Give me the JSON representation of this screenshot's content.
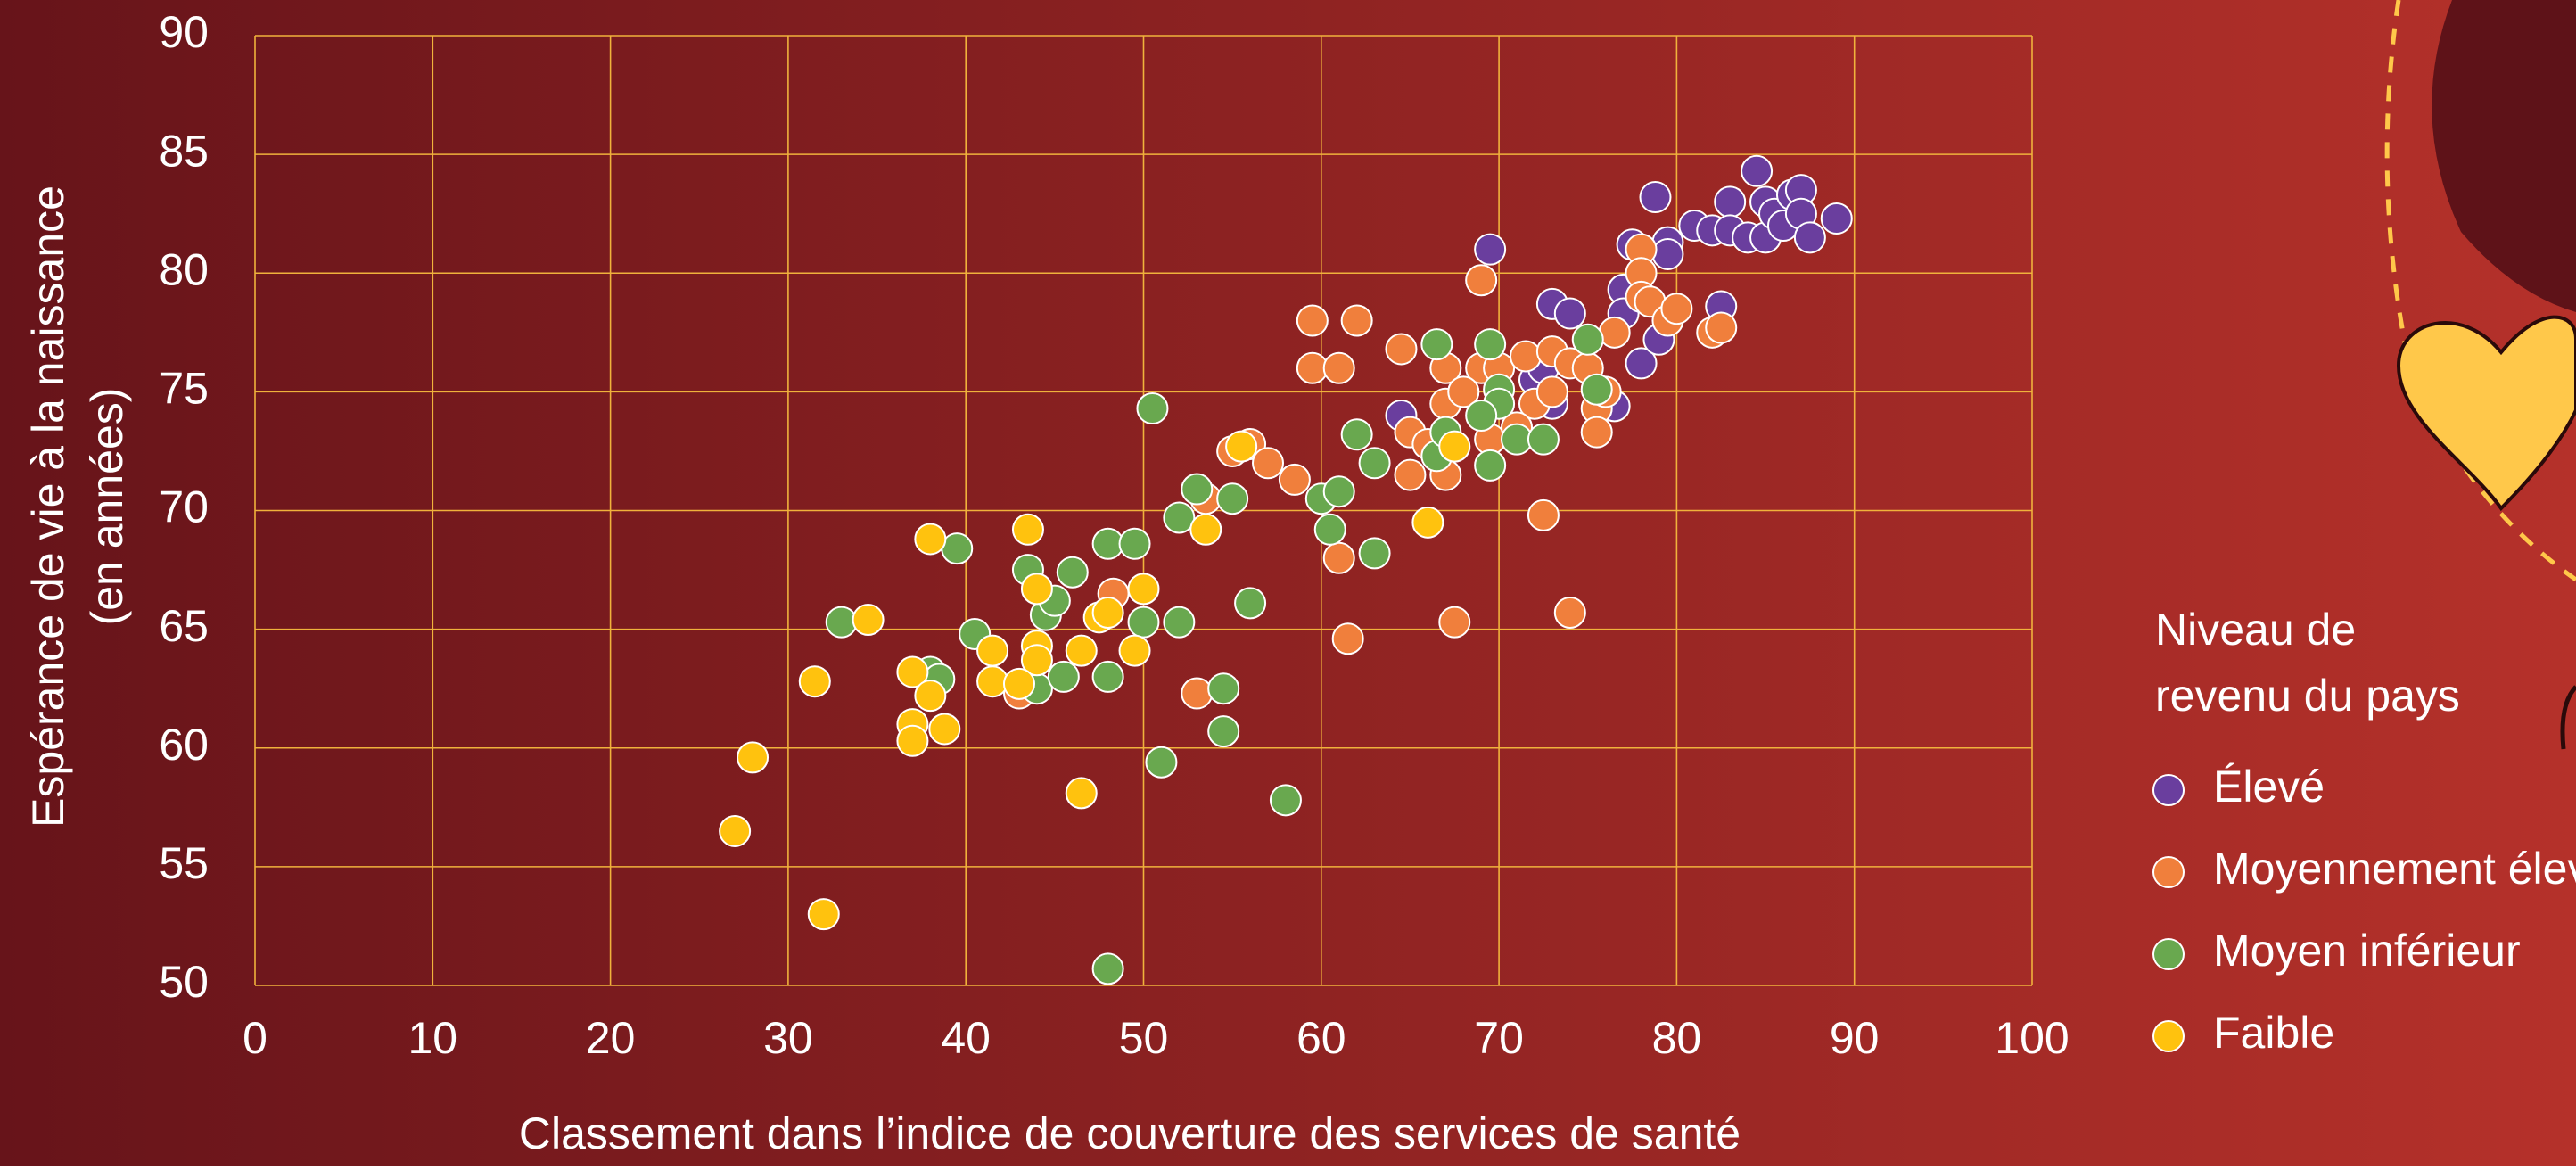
{
  "chart_data": {
    "type": "scatter",
    "x_label": "Classement dans l’indice de couverture des services de santé",
    "y_label": [
      "Espérance de vie à la naissance",
      "(en années)"
    ],
    "legend_title": [
      "Niveau de",
      "revenu du pays"
    ],
    "xlim": [
      0,
      100
    ],
    "ylim": [
      50,
      90
    ],
    "xticks": [
      0,
      10,
      20,
      30,
      40,
      50,
      60,
      70,
      80,
      90,
      100
    ],
    "yticks": [
      50,
      55,
      60,
      65,
      70,
      75,
      80,
      85,
      90
    ],
    "grid": true,
    "legend": "right",
    "series": [
      {
        "name": "Élevé",
        "color": "#6a3e9e",
        "x": [
          69.5,
          73,
          74,
          77.5,
          78.8,
          79.5,
          79.5,
          77,
          77,
          78,
          76.5,
          79,
          81,
          82,
          83,
          83,
          84,
          84.5,
          85,
          85,
          85.5,
          86,
          86.5,
          87,
          87,
          87.5,
          89,
          82.5,
          64.5,
          72,
          72.5,
          73,
          68
        ],
        "values": [
          81,
          78.7,
          78.3,
          81.2,
          83.2,
          81.3,
          80.8,
          79.3,
          78.3,
          76.2,
          74.4,
          77.2,
          82,
          81.8,
          83,
          81.8,
          81.5,
          84.3,
          83,
          81.5,
          82.5,
          82,
          83.3,
          83.5,
          82.5,
          81.5,
          82.3,
          78.6,
          74,
          75.5,
          76,
          74.5,
          75
        ]
      },
      {
        "name": "Moyennement élevé",
        "color": "#f07f3c",
        "x": [
          59.5,
          62,
          59.5,
          61,
          64.5,
          67,
          69,
          69,
          70,
          71.5,
          72,
          73,
          73,
          74,
          75,
          75.5,
          75.5,
          76,
          76.5,
          78,
          78,
          78,
          78.5,
          79.5,
          80,
          82,
          82.5,
          56,
          55,
          57,
          58.5,
          65,
          65,
          66,
          67,
          67,
          68,
          69.5,
          72.5,
          61,
          61.5,
          67.5,
          74,
          53,
          48.3,
          43,
          71,
          53.5
        ],
        "values": [
          78,
          78,
          76,
          76,
          76.8,
          76,
          79.7,
          76,
          76,
          76.5,
          74.5,
          76.7,
          75,
          76.2,
          76,
          74.3,
          73.3,
          75,
          77.5,
          81,
          80,
          79,
          78.8,
          78,
          78.5,
          77.5,
          77.7,
          72.8,
          72.5,
          72,
          71.3,
          73.3,
          71.5,
          72.8,
          74.5,
          71.5,
          75,
          73,
          69.8,
          68,
          64.6,
          65.3,
          65.7,
          62.3,
          66.5,
          62.3,
          73.5,
          70.5
        ]
      },
      {
        "name": "Moyen inférieur",
        "color": "#69a84f",
        "x": [
          50.5,
          62,
          63,
          66.5,
          69.5,
          75,
          75.5,
          70,
          70,
          69,
          71,
          72.5,
          66.5,
          67,
          69.5,
          60,
          61,
          60.5,
          63,
          55,
          53,
          52,
          48,
          49.5,
          46,
          43.5,
          39.5,
          44.5,
          45,
          50,
          52,
          56,
          40.5,
          38,
          38.5,
          44,
          45.5,
          48,
          54.5,
          54.5,
          51,
          58,
          48,
          33
        ],
        "values": [
          74.3,
          73.2,
          72,
          77,
          77,
          77.2,
          75.1,
          75.1,
          74.5,
          74,
          73,
          73,
          72.3,
          73.3,
          71.9,
          70.5,
          70.8,
          69.2,
          68.2,
          70.5,
          70.9,
          69.7,
          68.6,
          68.6,
          67.4,
          67.5,
          68.4,
          65.6,
          66.2,
          65.3,
          65.3,
          66.1,
          64.8,
          63.2,
          62.9,
          62.5,
          63,
          63,
          62.5,
          60.7,
          59.4,
          57.8,
          50.7,
          65.3
        ]
      },
      {
        "name": "Faible",
        "color": "#ffc20e",
        "x": [
          55.5,
          67.5,
          66,
          53.5,
          38,
          43.5,
          50,
          44,
          47.5,
          48,
          34.5,
          41.5,
          44,
          44,
          46.5,
          49.5,
          37,
          38,
          41.5,
          43,
          31.5,
          37,
          37,
          38.8,
          28,
          46.5,
          27,
          32
        ],
        "values": [
          72.7,
          72.7,
          69.5,
          69.2,
          68.8,
          69.2,
          66.7,
          66.7,
          65.5,
          65.7,
          65.4,
          64.1,
          64.3,
          63.7,
          64.1,
          64.1,
          63.2,
          62.2,
          62.8,
          62.7,
          62.8,
          61,
          60.3,
          60.8,
          59.6,
          58.1,
          56.5,
          53
        ]
      }
    ]
  }
}
